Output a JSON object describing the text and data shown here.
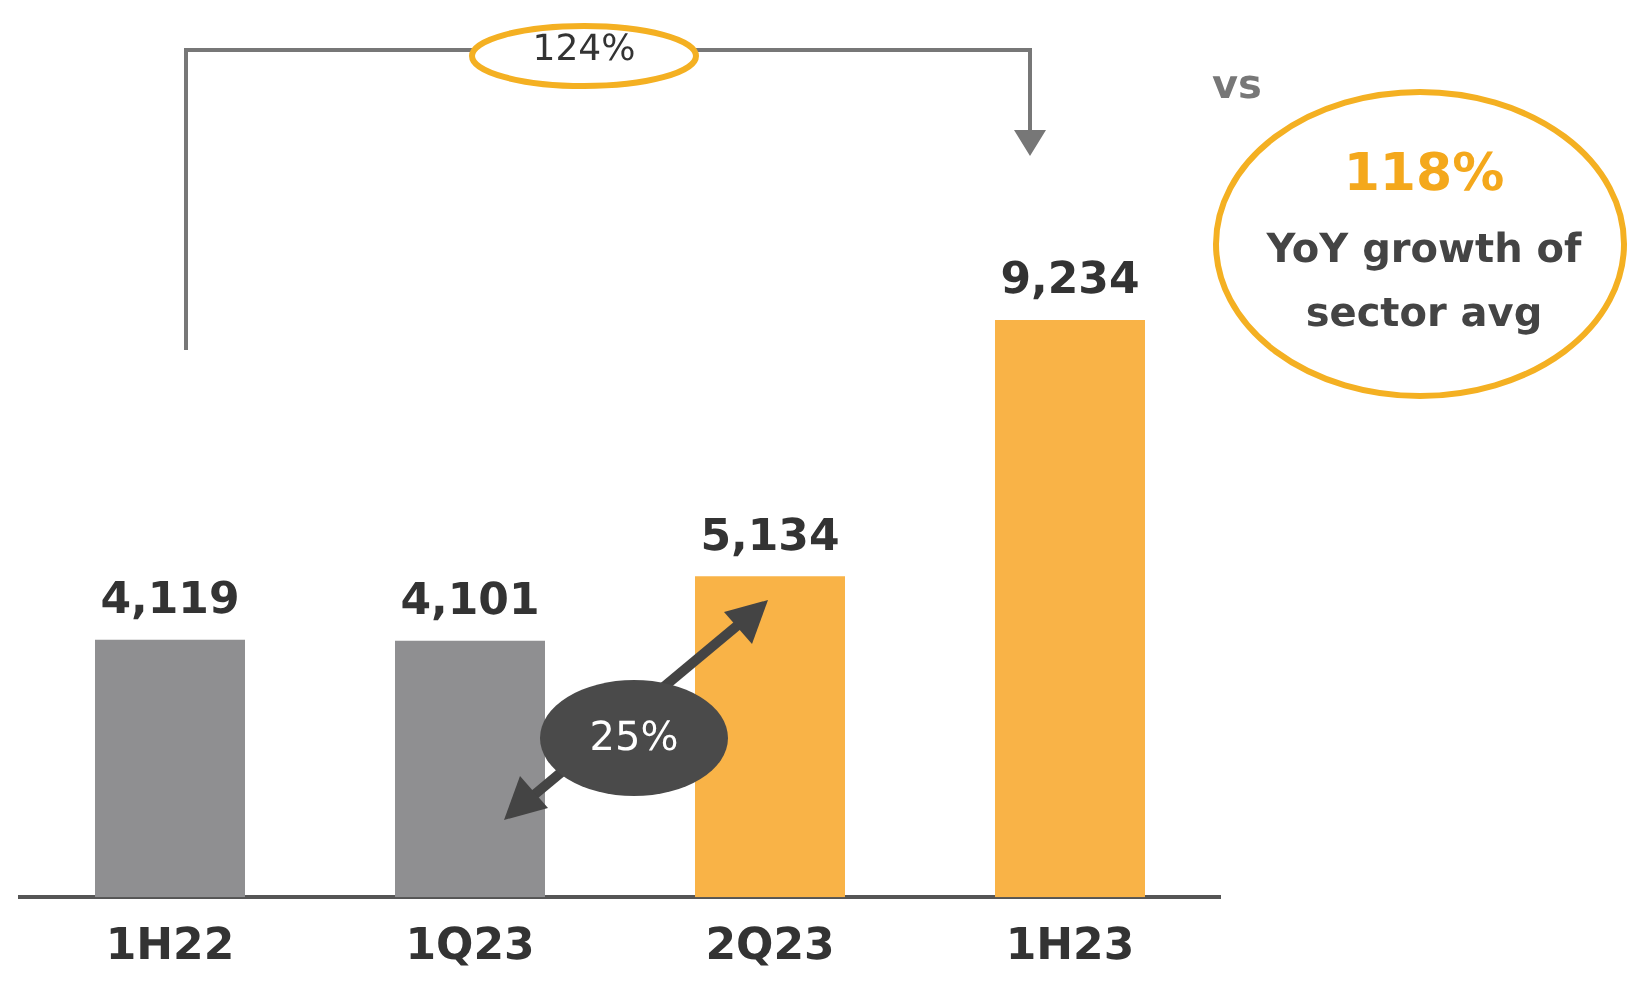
{
  "chart_data": {
    "type": "bar",
    "categories": [
      "1H22",
      "1Q23",
      "2Q23",
      "1H23"
    ],
    "values": [
      4119,
      4101,
      5134,
      9234
    ],
    "colors": [
      "#8f8f91",
      "#8f8f91",
      "#f9b347",
      "#f9b347"
    ],
    "value_labels": [
      "4,119",
      "4,101",
      "5,134",
      "9,234"
    ],
    "grid": false,
    "legend": false,
    "tick_labels": "x",
    "annotations": [
      "124%",
      "vs",
      "118%",
      "YoY growth of sector avg",
      "25%"
    ]
  }
}
